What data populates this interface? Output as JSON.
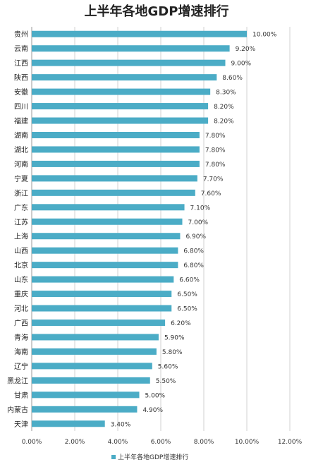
{
  "chart_data": {
    "type": "bar",
    "orientation": "horizontal",
    "title": "上半年各地GDP增速排行",
    "legend": "上半年各地GDP增速排行",
    "legend_position": "bottom",
    "bar_color": "#4bacc6",
    "grid": true,
    "xlim": [
      0,
      12
    ],
    "x_ticks": [
      "0.00%",
      "2.00%",
      "4.00%",
      "6.00%",
      "8.00%",
      "10.00%",
      "12.00%"
    ],
    "categories": [
      "贵州",
      "云南",
      "江西",
      "陕西",
      "安徽",
      "四川",
      "福建",
      "湖南",
      "湖北",
      "河南",
      "宁夏",
      "浙江",
      "广东",
      "江苏",
      "上海",
      "山西",
      "北京",
      "山东",
      "重庆",
      "河北",
      "广西",
      "青海",
      "海南",
      "辽宁",
      "黑龙江",
      "甘肃",
      "内蒙古",
      "天津"
    ],
    "values": [
      10.0,
      9.2,
      9.0,
      8.6,
      8.3,
      8.2,
      8.2,
      7.8,
      7.8,
      7.8,
      7.7,
      7.6,
      7.1,
      7.0,
      6.9,
      6.8,
      6.8,
      6.6,
      6.5,
      6.5,
      6.2,
      5.9,
      5.8,
      5.6,
      5.5,
      5.0,
      4.9,
      3.4
    ],
    "value_labels": [
      "10.00%",
      "9.20%",
      "9.00%",
      "8.60%",
      "8.30%",
      "8.20%",
      "8.20%",
      "7.80%",
      "7.80%",
      "7.80%",
      "7.70%",
      "7.60%",
      "7.10%",
      "7.00%",
      "6.90%",
      "6.80%",
      "6.80%",
      "6.60%",
      "6.50%",
      "6.50%",
      "6.20%",
      "5.90%",
      "5.80%",
      "5.60%",
      "5.50%",
      "5.00%",
      "4.90%",
      "3.40%"
    ]
  }
}
